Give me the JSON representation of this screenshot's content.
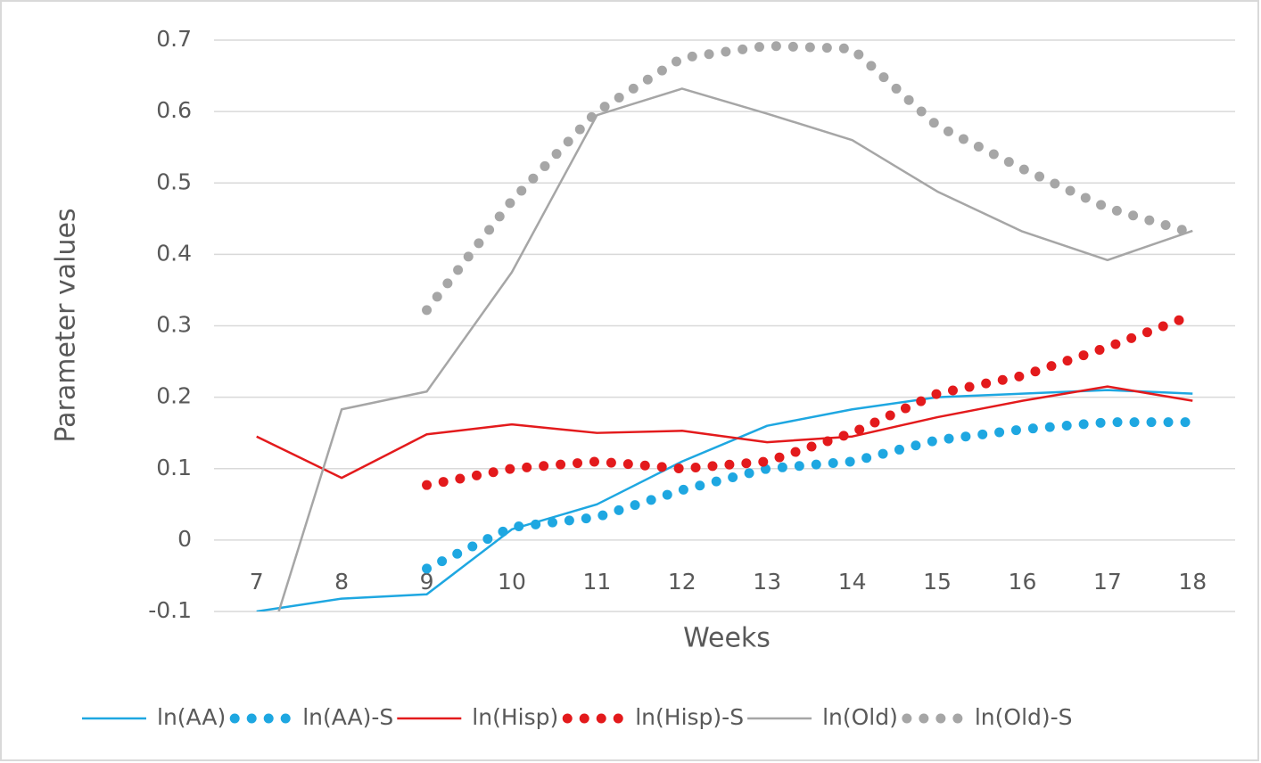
{
  "chart_data": {
    "type": "line",
    "x_label": "Weeks",
    "y_label": "Parameter values",
    "categories": [
      "7",
      "8",
      "9",
      "10",
      "11",
      "12",
      "13",
      "14",
      "15",
      "16",
      "17",
      "18"
    ],
    "ylim": [
      -0.1,
      0.7
    ],
    "yticks": [
      -0.1,
      0,
      0.1,
      0.2,
      0.3,
      0.4,
      0.5,
      0.6,
      0.7
    ],
    "grid": true,
    "legend": "bottom",
    "series": [
      {
        "name": "ln(AA)",
        "color": "#1ea7e1",
        "style": "solid",
        "values": [
          -0.1,
          -0.082,
          -0.076,
          0.015,
          0.05,
          0.11,
          0.16,
          0.183,
          0.2,
          0.205,
          0.21,
          0.205
        ]
      },
      {
        "name": "ln(AA)-S",
        "color": "#1ea7e1",
        "style": "dotted",
        "values": [
          null,
          null,
          -0.04,
          0.018,
          0.032,
          0.07,
          0.1,
          0.11,
          0.14,
          0.155,
          0.165,
          0.165
        ]
      },
      {
        "name": "ln(Hisp)",
        "color": "#e31a1c",
        "style": "solid",
        "values": [
          0.145,
          0.087,
          0.148,
          0.162,
          0.15,
          0.153,
          0.137,
          0.145,
          0.172,
          0.195,
          0.215,
          0.195
        ]
      },
      {
        "name": "ln(Hisp)-S",
        "color": "#e31a1c",
        "style": "dotted",
        "values": [
          null,
          null,
          0.077,
          0.1,
          0.11,
          0.1,
          0.11,
          0.15,
          0.205,
          0.23,
          0.27,
          0.315
        ]
      },
      {
        "name": "ln(Old)",
        "color": "#a6a6a6",
        "style": "solid",
        "values": [
          -0.2,
          0.183,
          0.208,
          0.375,
          0.595,
          0.632,
          0.597,
          0.56,
          0.488,
          0.432,
          0.392,
          0.433
        ]
      },
      {
        "name": "ln(Old)-S",
        "color": "#a6a6a6",
        "style": "dotted",
        "values": [
          null,
          null,
          0.322,
          0.475,
          0.6,
          0.675,
          0.692,
          0.688,
          0.58,
          0.52,
          0.465,
          0.43
        ]
      }
    ]
  }
}
